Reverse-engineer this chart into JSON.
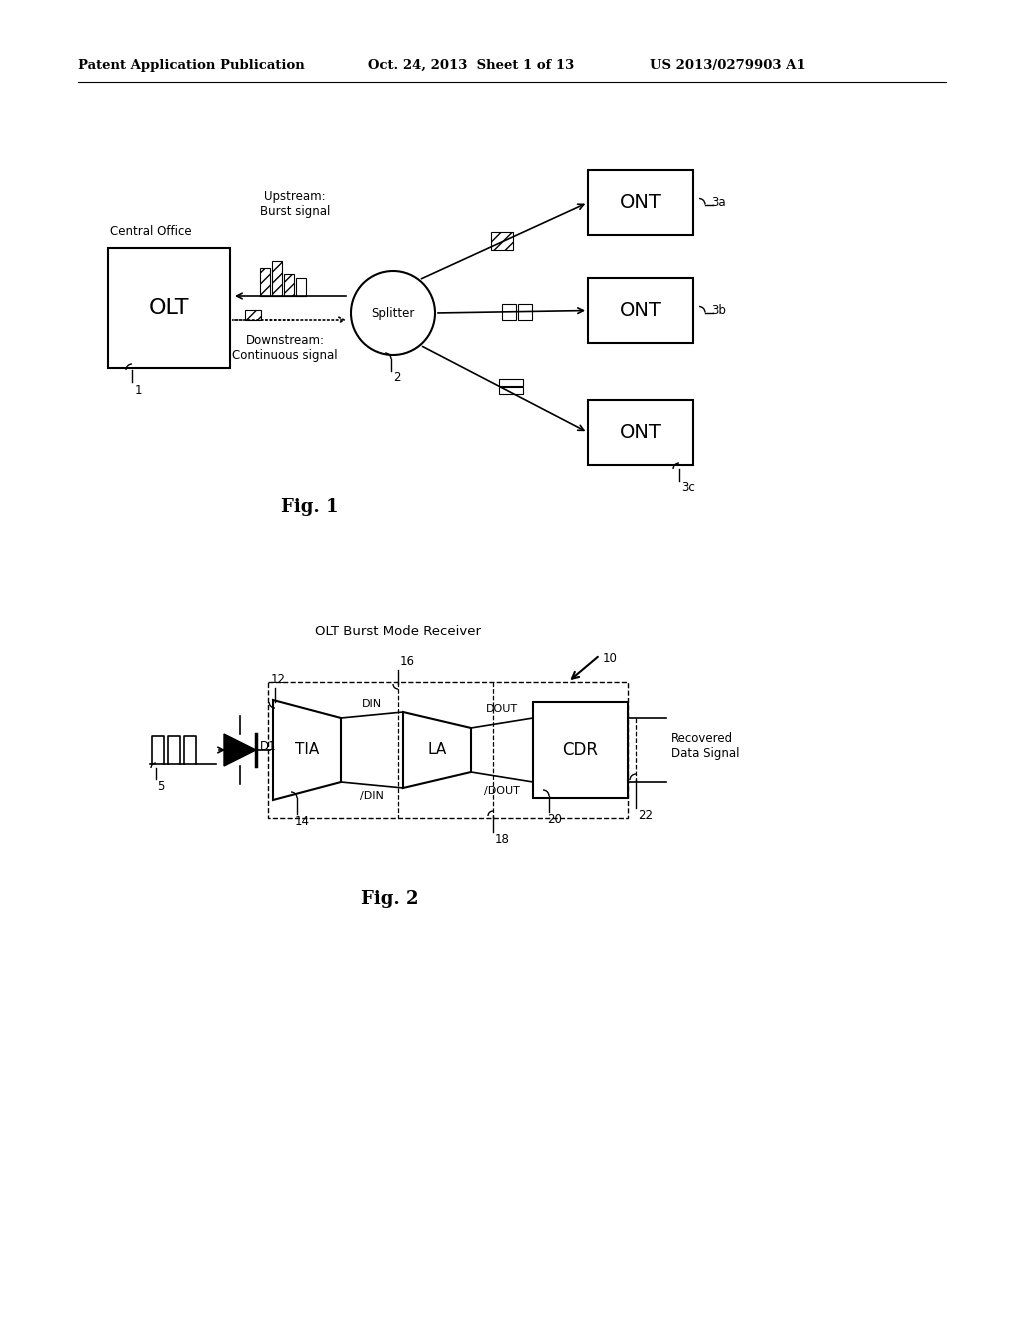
{
  "bg_color": "#ffffff",
  "header_text": "Patent Application Publication",
  "header_date": "Oct. 24, 2013  Sheet 1 of 13",
  "header_patent": "US 2013/0279903 A1",
  "fig1_label": "Fig. 1",
  "fig2_label": "Fig. 2",
  "fig1_caption_upstream": "Upstream:\nBurst signal",
  "fig1_caption_downstream": "Downstream:\nContinuous signal",
  "fig1_central_office": "Central Office",
  "fig1_olt": "OLT",
  "fig1_splitter": "Splitter",
  "fig1_ont_labels": [
    "ONT",
    "ONT",
    "ONT"
  ],
  "fig2_box_label": "OLT Burst Mode Receiver",
  "fig2_ref_10": "10",
  "fig2_tia": "TIA",
  "fig2_la": "LA",
  "fig2_cdr": "CDR",
  "fig2_d1": "D1",
  "fig2_ref5": "5",
  "fig2_din": "DIN",
  "fig2_ndin": "/DIN",
  "fig2_dout": "DOUT",
  "fig2_ndout": "/DOUT",
  "fig2_recovered": "Recovered\nData Signal",
  "fig2_ref_12": "12",
  "fig2_ref_14": "14",
  "fig2_ref_16": "16",
  "fig2_ref_18": "18",
  "fig2_ref_20": "20",
  "fig2_ref_22": "22"
}
